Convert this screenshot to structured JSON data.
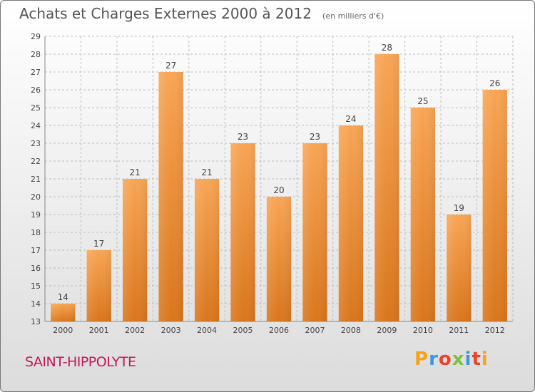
{
  "title": "Achats et Charges Externes 2000 à 2012",
  "subtitle": "(en milliers d'€)",
  "city": "SAINT-HIPPOLYTE",
  "brand": {
    "letters": [
      "P",
      "r",
      "o",
      "x",
      "i",
      "t",
      "i"
    ],
    "colors": [
      "#f7a21b",
      "#3a9ad9",
      "#e8442b",
      "#7cc242",
      "#3a9ad9",
      "#e8442b",
      "#f7a21b"
    ]
  },
  "colors": {
    "bar_top": "#f8a555",
    "bar_bottom": "#d9761c",
    "grid": "#bbbbbb",
    "axis_text": "#444444"
  },
  "chart_data": {
    "type": "bar",
    "title": "Achats et Charges Externes 2000 à 2012",
    "subtitle": "(en milliers d'€)",
    "categories": [
      "2000",
      "2001",
      "2002",
      "2003",
      "2004",
      "2005",
      "2006",
      "2007",
      "2008",
      "2009",
      "2010",
      "2011",
      "2012"
    ],
    "values": [
      14,
      17,
      21,
      27,
      21,
      23,
      20,
      23,
      24,
      28,
      25,
      19,
      26
    ],
    "ylim": [
      13,
      29
    ],
    "yticks": [
      13,
      14,
      15,
      16,
      17,
      18,
      19,
      20,
      21,
      22,
      23,
      24,
      25,
      26,
      27,
      28,
      29
    ],
    "grid": true,
    "data_labels": true
  }
}
